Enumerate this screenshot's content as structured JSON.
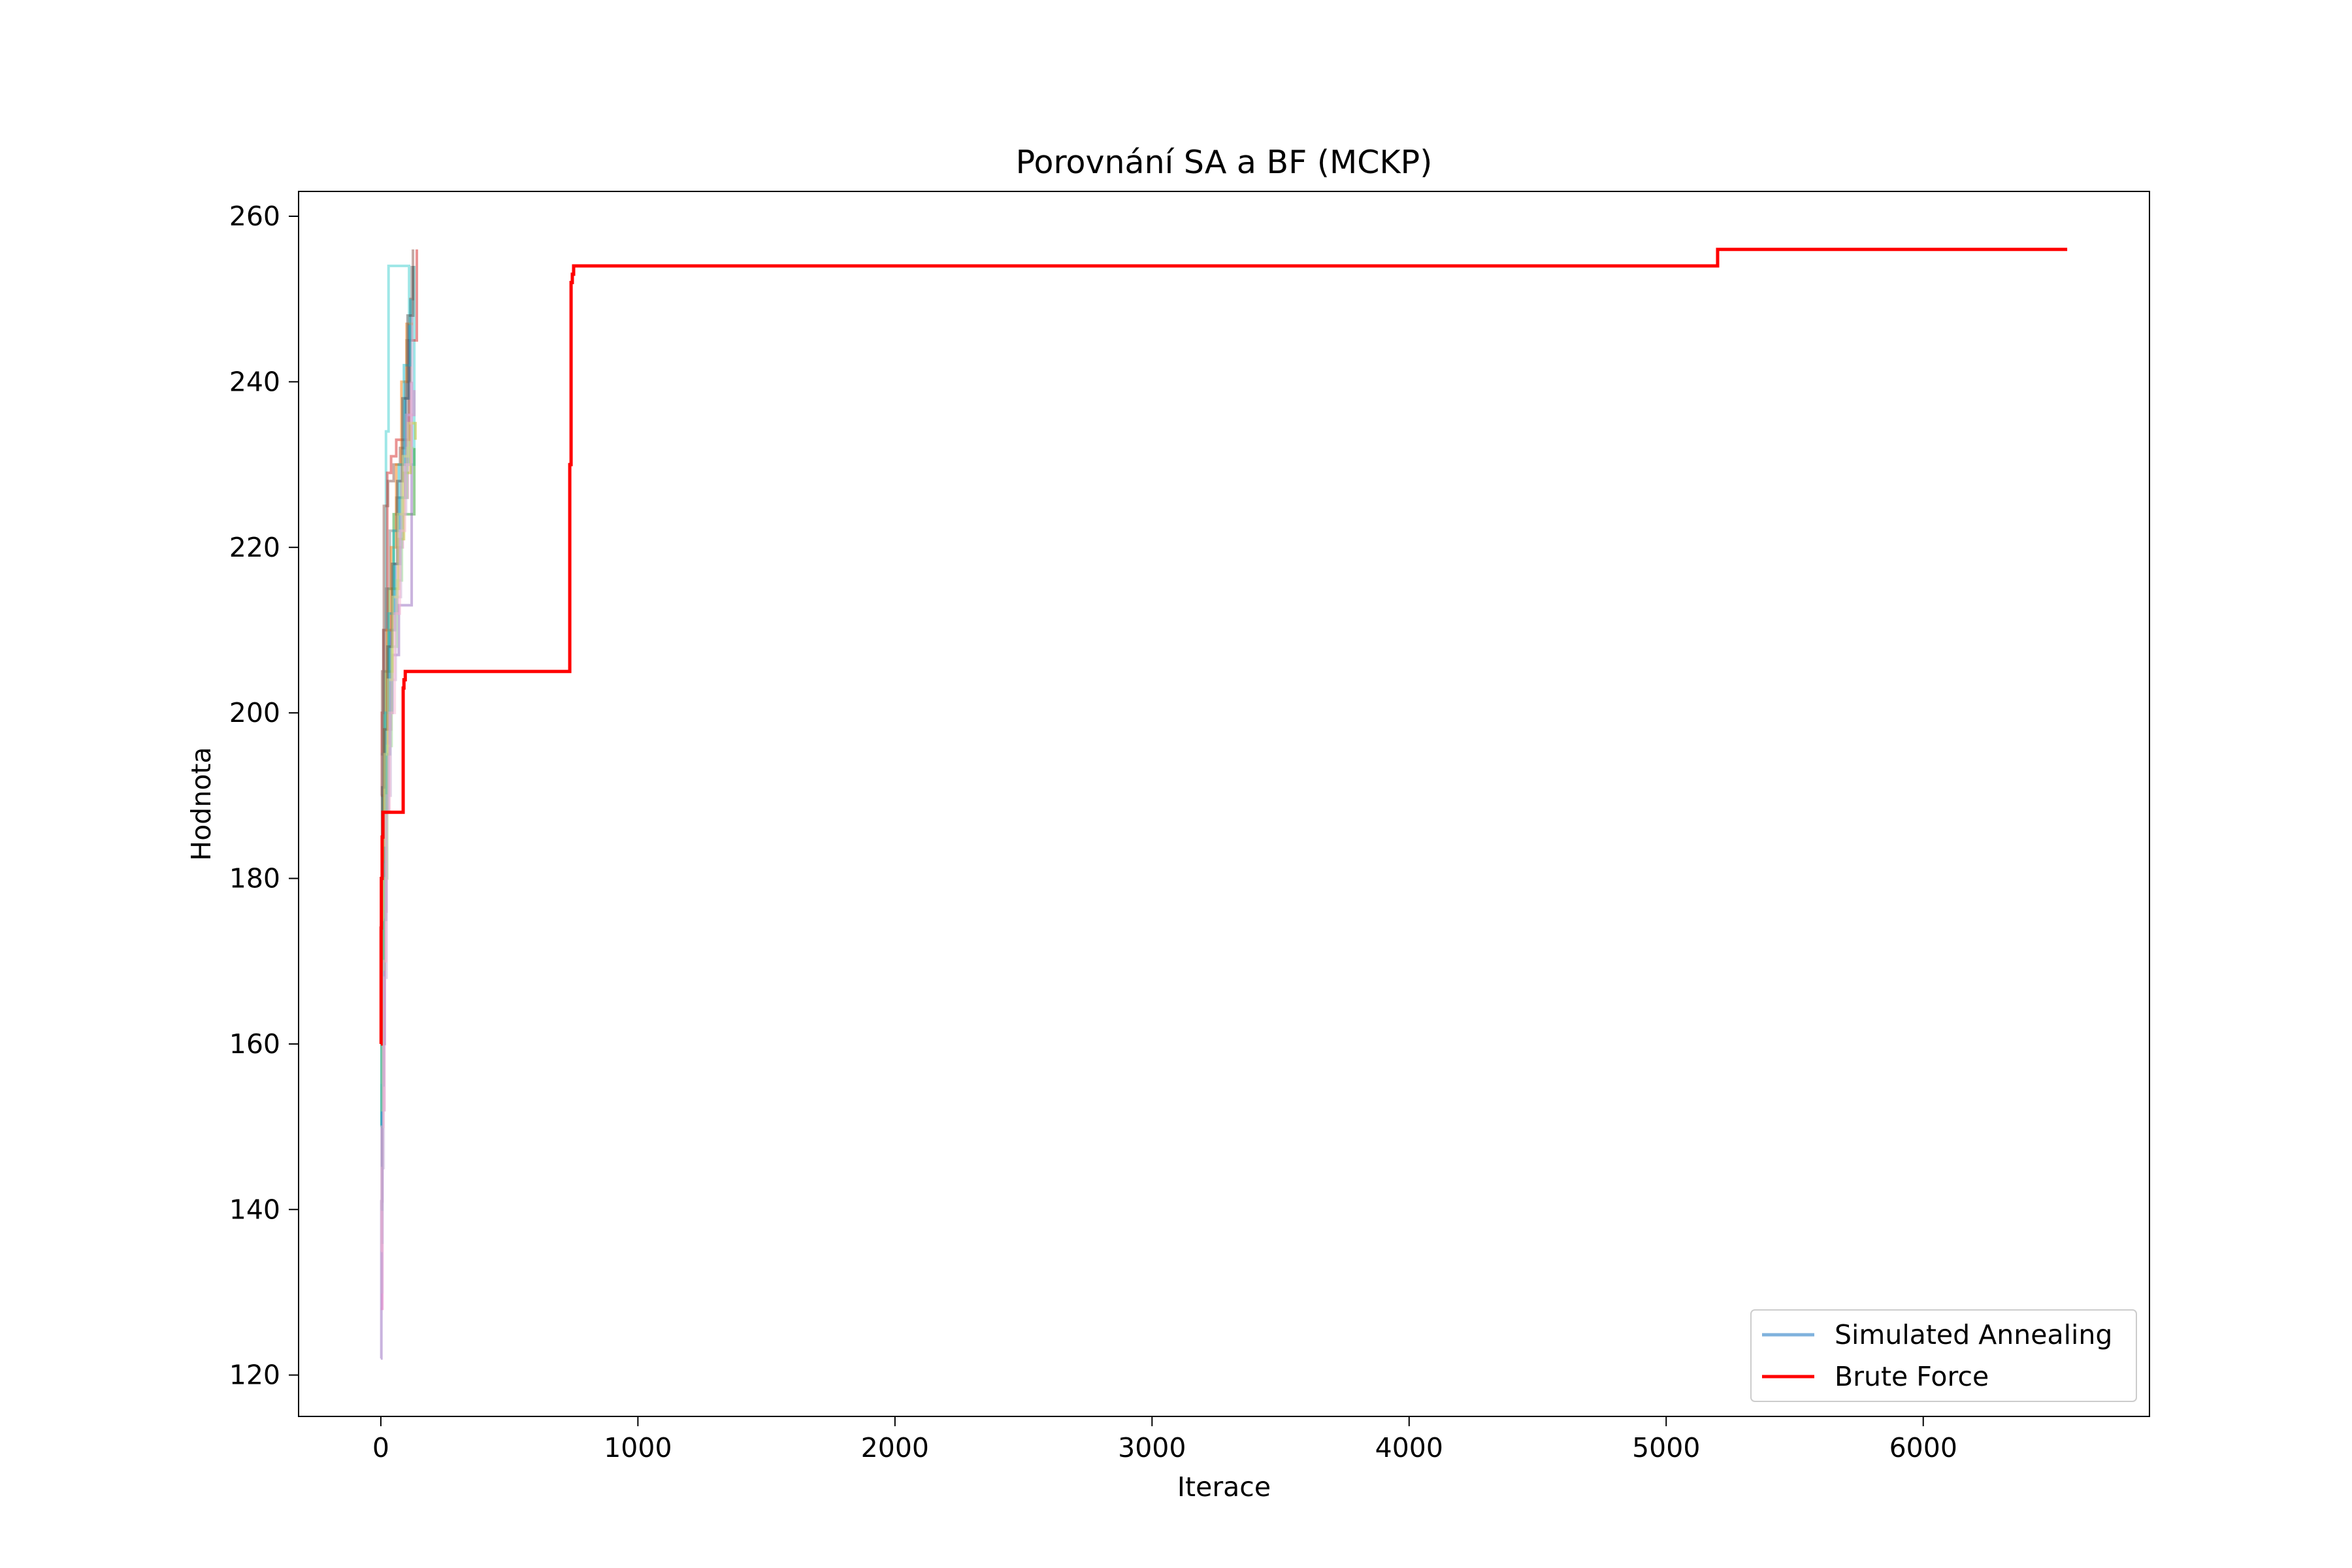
{
  "chart_data": {
    "type": "line",
    "title": "Porovnání SA a BF (MCKP)",
    "xlabel": "Iterace",
    "ylabel": "Hodnota",
    "xlim": [
      -320,
      6880
    ],
    "ylim": [
      115,
      263
    ],
    "xticks": [
      0,
      1000,
      2000,
      3000,
      4000,
      5000,
      6000
    ],
    "yticks": [
      120,
      140,
      160,
      180,
      200,
      220,
      240,
      260
    ],
    "xtick_labels": [
      "0",
      "1000",
      "2000",
      "3000",
      "4000",
      "5000",
      "6000"
    ],
    "ytick_labels": [
      "120",
      "140",
      "160",
      "180",
      "200",
      "220",
      "240",
      "260"
    ],
    "grid": false,
    "legend_position": "lower right",
    "legend": [
      {
        "label": "Simulated Annealing",
        "color": "#7fb2dd"
      },
      {
        "label": "Brute Force",
        "color": "#ff0000"
      }
    ],
    "series": [
      {
        "name": "Brute Force",
        "color": "#ff0000",
        "x": [
          0,
          1,
          2,
          5,
          8,
          85,
          87,
          90,
          95,
          730,
          735,
          740,
          745,
          750,
          5190,
          5200,
          6560
        ],
        "y": [
          160,
          174,
          180,
          185,
          188,
          188,
          203,
          204,
          205,
          205,
          230,
          252,
          253,
          254,
          254,
          256,
          256
        ]
      },
      {
        "name": "Simulated Annealing",
        "color": "#40d0d0",
        "x": [
          0,
          5,
          10,
          20,
          30,
          60,
          100,
          110,
          130
        ],
        "y": [
          136,
          180,
          210,
          234,
          254,
          254,
          254,
          230,
          254
        ]
      },
      {
        "name": "Simulated Annealing",
        "color": "#2ca02c",
        "x": [
          0,
          3,
          8,
          15,
          30,
          50,
          90,
          120,
          130
        ],
        "y": [
          150,
          170,
          190,
          205,
          215,
          224,
          224,
          224,
          232
        ]
      },
      {
        "name": "Simulated Annealing",
        "color": "#d62728",
        "x": [
          0,
          4,
          10,
          25,
          40,
          60,
          90,
          110,
          140
        ],
        "y": [
          190,
          200,
          210,
          229,
          231,
          233,
          233,
          245,
          256
        ]
      },
      {
        "name": "Simulated Annealing",
        "color": "#9467bd",
        "x": [
          0,
          2,
          5,
          15,
          30,
          45,
          70,
          100,
          120
        ],
        "y": [
          122,
          141,
          160,
          188,
          200,
          207,
          213,
          213,
          240
        ]
      },
      {
        "name": "Simulated Annealing",
        "color": "#8c564b",
        "x": [
          0,
          5,
          12,
          28,
          50,
          75,
          95,
          115,
          125
        ],
        "y": [
          195,
          205,
          225,
          228,
          230,
          232,
          240,
          250,
          256
        ]
      },
      {
        "name": "Simulated Annealing",
        "color": "#e377c2",
        "x": [
          0,
          6,
          14,
          22,
          40,
          65,
          85,
          105,
          130
        ],
        "y": [
          128,
          152,
          176,
          198,
          212,
          220,
          226,
          236,
          239
        ]
      },
      {
        "name": "Simulated Annealing",
        "color": "#7f7f7f",
        "x": [
          0,
          5,
          12,
          20,
          35,
          60,
          80,
          100,
          120
        ],
        "y": [
          185,
          195,
          205,
          215,
          222,
          226,
          230,
          245,
          254
        ]
      },
      {
        "name": "Simulated Annealing",
        "color": "#bcbd22",
        "x": [
          0,
          8,
          16,
          25,
          45,
          70,
          90,
          115,
          135
        ],
        "y": [
          160,
          180,
          195,
          205,
          215,
          221,
          229,
          235,
          233
        ]
      },
      {
        "name": "Simulated Annealing",
        "color": "#1f77b4",
        "x": [
          0,
          4,
          10,
          20,
          35,
          55,
          75,
          95,
          110
        ],
        "y": [
          140,
          155,
          175,
          195,
          210,
          218,
          226,
          238,
          247
        ]
      },
      {
        "name": "Simulated Annealing",
        "color": "#ff7f0e",
        "x": [
          0,
          6,
          14,
          24,
          40,
          60,
          80,
          100,
          125
        ],
        "y": [
          170,
          182,
          198,
          210,
          220,
          230,
          240,
          247,
          247
        ]
      },
      {
        "name": "Simulated Annealing",
        "color": "#17becf",
        "x": [
          0,
          3,
          9,
          18,
          30,
          50,
          70,
          90,
          115
        ],
        "y": [
          150,
          165,
          182,
          200,
          212,
          222,
          230,
          242,
          250
        ]
      },
      {
        "name": "Simulated Annealing",
        "color": "#98df8a",
        "x": [
          0,
          5,
          12,
          25,
          42,
          62,
          82,
          102,
          128
        ],
        "y": [
          152,
          169,
          180,
          196,
          208,
          216,
          226,
          232,
          232
        ]
      },
      {
        "name": "Simulated Annealing",
        "color": "#c5b0d5",
        "x": [
          0,
          4,
          11,
          22,
          38,
          58,
          78,
          98,
          122
        ],
        "y": [
          130,
          145,
          168,
          190,
          204,
          214,
          224,
          236,
          248
        ]
      },
      {
        "name": "Simulated Annealing",
        "color": "#555555",
        "x": [
          0,
          5,
          13,
          26,
          44,
          64,
          84,
          104,
          126
        ],
        "y": [
          183,
          191,
          198,
          208,
          218,
          228,
          238,
          248,
          254
        ]
      },
      {
        "name": "Simulated Annealing",
        "color": "#dbdb8d",
        "x": [
          0,
          7,
          15,
          28,
          46,
          66,
          86,
          106,
          130
        ],
        "y": [
          175,
          184,
          195,
          204,
          214,
          224,
          231,
          235,
          235
        ]
      },
      {
        "name": "Simulated Annealing",
        "color": "#f7b6d2",
        "x": [
          0,
          3,
          10,
          20,
          34,
          54,
          74,
          94,
          118
        ],
        "y": [
          135,
          150,
          170,
          188,
          200,
          212,
          222,
          230,
          240
        ]
      }
    ]
  }
}
